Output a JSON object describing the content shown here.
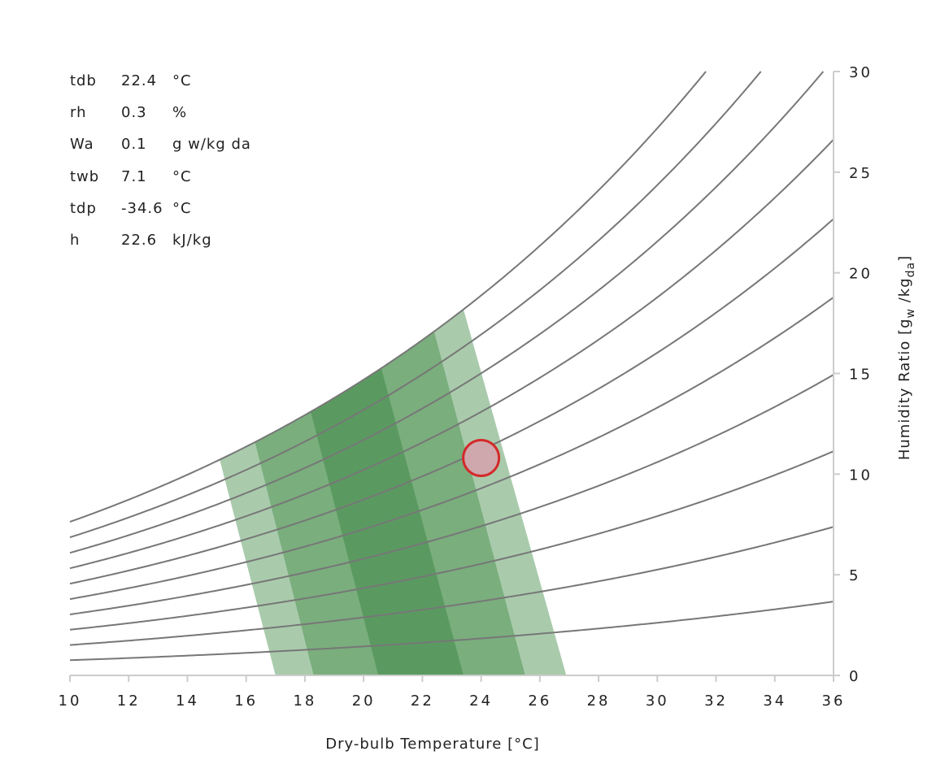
{
  "chart_data": {
    "type": "psychrometric",
    "xlabel": "Dry-bulb Temperature [°C]",
    "ylabel": "Humidity Ratio [g_w / kg_da]",
    "ylabel_parts": {
      "main": "Humidity Ratio [g",
      "sub_w": "w",
      "mid": " /kg",
      "sub_da": "da",
      "end": "]"
    },
    "xlim": [
      10,
      36
    ],
    "ylim": [
      0,
      30
    ],
    "x_ticks": [
      10,
      12,
      14,
      16,
      18,
      20,
      22,
      24,
      26,
      28,
      30,
      32,
      34,
      36
    ],
    "y_ticks": [
      0,
      5,
      10,
      15,
      20,
      25,
      30
    ],
    "rh_curves_percent": [
      10,
      20,
      30,
      40,
      50,
      60,
      70,
      80,
      90,
      100
    ],
    "comfort_zones": [
      {
        "name": "outer",
        "color": "#a9cbac",
        "bottom_x": [
          17.0,
          26.9
        ],
        "top_x": [
          15.1,
          23.4
        ]
      },
      {
        "name": "middle",
        "color": "#7aae7d",
        "bottom_x": [
          18.3,
          25.5
        ],
        "top_x": [
          16.3,
          22.4
        ]
      },
      {
        "name": "inner",
        "color": "#5a9a60",
        "bottom_x": [
          20.5,
          23.4
        ],
        "top_x": [
          18.2,
          20.6
        ]
      }
    ],
    "point": {
      "tdb": 24.0,
      "w": 10.8,
      "fill": "#cfa8ad",
      "stroke": "#d42a2a"
    }
  },
  "readout": [
    {
      "label": "tdb",
      "value": "22.4",
      "unit": "°C"
    },
    {
      "label": "rh",
      "value": "0.3",
      "unit": "%"
    },
    {
      "label": "Wa",
      "value": "0.1",
      "unit": "g w/kg da"
    },
    {
      "label": "twb",
      "value": "7.1",
      "unit": "°C"
    },
    {
      "label": "tdp",
      "value": "-34.6",
      "unit": "°C"
    },
    {
      "label": "h",
      "value": "22.6",
      "unit": "kJ/kg"
    }
  ]
}
